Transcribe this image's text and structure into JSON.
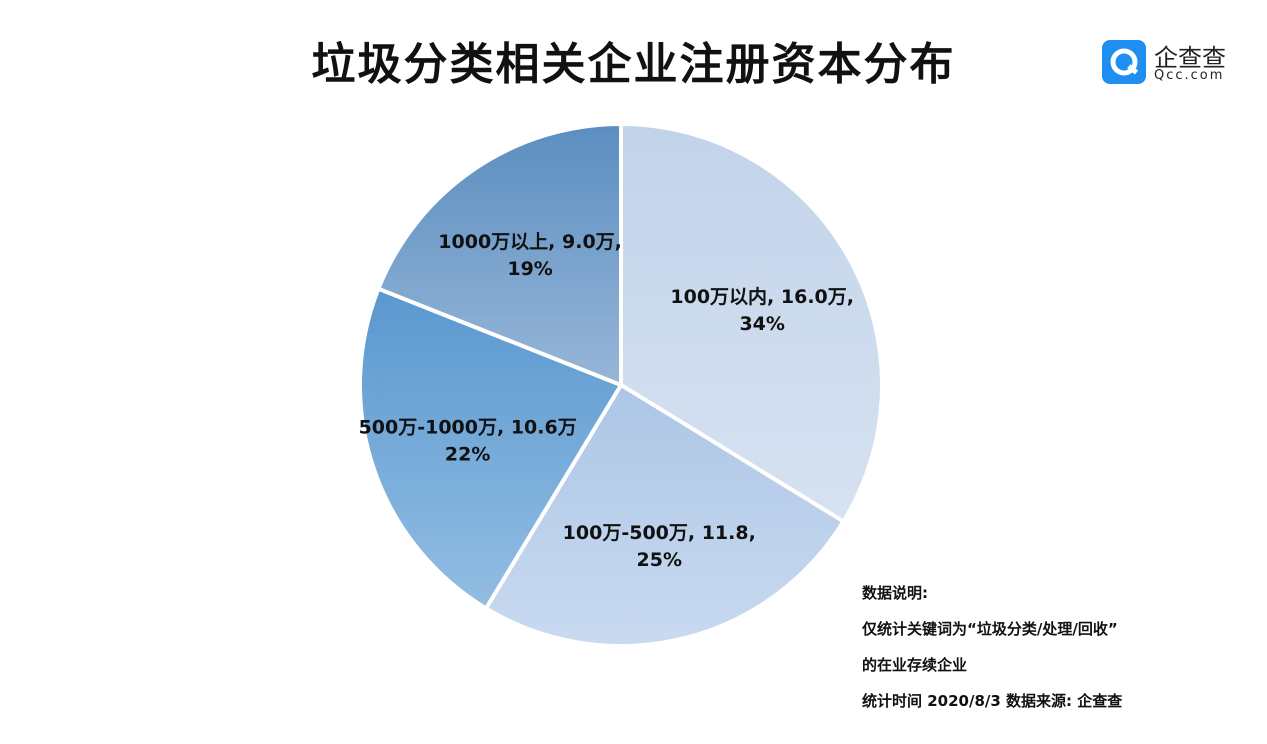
{
  "title": "垃圾分类相关企业注册资本分布",
  "logo": {
    "name": "企查查",
    "domain": "Qcc.com"
  },
  "chart_data": {
    "type": "pie",
    "slices": [
      {
        "label": "100万以内",
        "value": 16.0,
        "percent": 34,
        "text": "100万以内, 16.0万,",
        "pct_text": "34%",
        "color_light": "#d6e2f1",
        "color_dark": "#c2d3ea"
      },
      {
        "label": "100万-500万",
        "value": 11.8,
        "percent": 25,
        "text": "100万-500万, 11.8,",
        "pct_text": "25%",
        "color_light": "#c9daf0",
        "color_dark": "#adc6e6"
      },
      {
        "label": "500万-1000万",
        "value": 10.6,
        "percent": 22,
        "text": "500万-1000万, 10.6万",
        "pct_text": "22%",
        "color_light": "#92bde3",
        "color_dark": "#5a98cf"
      },
      {
        "label": "1000万以上",
        "value": 9.0,
        "percent": 19,
        "text": "1000万以上, 9.0万,",
        "pct_text": "19%",
        "color_light": "#97b6d8",
        "color_dark": "#5b8ec0"
      }
    ]
  },
  "notes": {
    "heading": "数据说明:",
    "line1": "仅统计关键词为“垃圾分类/处理/回收”",
    "line2": "的在业存续企业",
    "line3": "统计时间 2020/8/3    数据来源:  企查查"
  }
}
